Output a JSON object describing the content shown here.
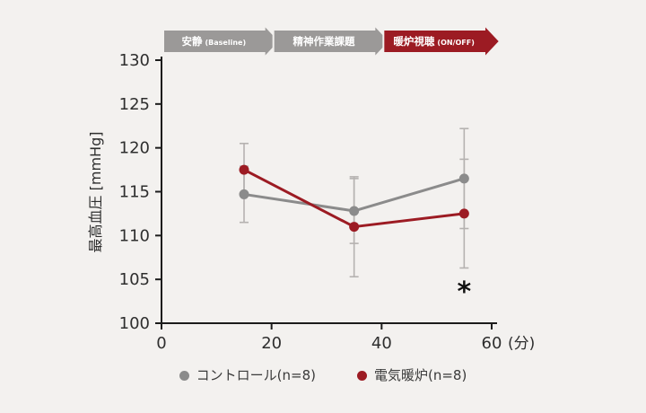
{
  "colors": {
    "background": "#f3f1ef",
    "axis": "#1c1c1c",
    "text": "#2e2e2e"
  },
  "chart_data": {
    "type": "line",
    "title": "",
    "x": [
      15,
      35,
      55
    ],
    "xticks": [
      0,
      20,
      40,
      60
    ],
    "yticks": [
      100,
      105,
      110,
      115,
      120,
      125,
      130
    ],
    "xlim": [
      0,
      60
    ],
    "ylim": [
      100,
      130
    ],
    "xlabel": "",
    "x_unit": "(分)",
    "ylabel": "最高血圧 [mmHg]",
    "grid": false,
    "legend_position": "bottom",
    "error_bar_color": "#b5b2b0",
    "series": [
      {
        "name": "コントロール(n=8)",
        "color": "#8b8b8b",
        "values": [
          114.7,
          112.8,
          116.5
        ],
        "errors": [
          3.2,
          3.7,
          5.7
        ]
      },
      {
        "name": "電気暖炉(n=8)",
        "color": "#9c1b23",
        "values": [
          117.5,
          111.0,
          112.5
        ],
        "errors": [
          3.0,
          5.7,
          6.2
        ]
      }
    ],
    "phases": [
      {
        "label": "安静",
        "sub": "(Baseline)",
        "color": "#9b9998",
        "x_start": 0,
        "x_end": 20
      },
      {
        "label": "精神作業課題",
        "sub": "",
        "color": "#9b9998",
        "x_start": 20,
        "x_end": 40
      },
      {
        "label": "暖炉視聴",
        "sub": "(ON/OFF)",
        "color": "#9c1b23",
        "x_start": 40,
        "x_end": 60
      }
    ],
    "annotations": [
      {
        "text": "*",
        "x": 55,
        "y": 104
      }
    ]
  }
}
